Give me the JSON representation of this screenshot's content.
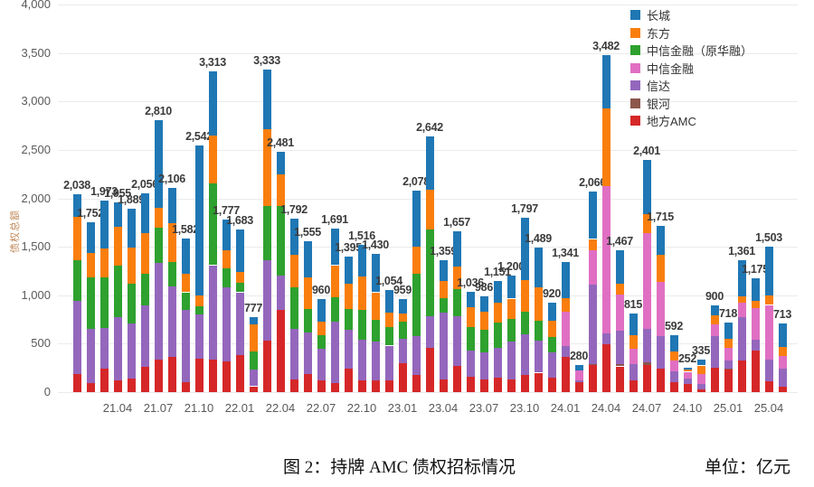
{
  "chart_data": {
    "type": "bar",
    "variant": "stacked",
    "title": "图 2：持牌 AMC 债权招标情况",
    "unit_label": "单位：亿元",
    "ylabel": "债权总额",
    "ylim": [
      0,
      4000
    ],
    "ytick_step": 500,
    "grid": true,
    "legend_position": "top-right",
    "legend_order": [
      "长城",
      "东方",
      "中信金融（原华融）",
      "中信金融",
      "信达",
      "银河",
      "地方AMC"
    ],
    "categories": [
      "21.01",
      "21.02",
      "21.03",
      "21.04",
      "21.05",
      "21.06",
      "21.07",
      "21.08",
      "21.09",
      "21.10",
      "21.11",
      "21.12",
      "22.01",
      "22.02",
      "22.03",
      "22.04",
      "22.05",
      "22.06",
      "22.07",
      "22.08",
      "22.09",
      "22.10",
      "22.11",
      "22.12",
      "23.01",
      "23.02",
      "23.03",
      "23.04",
      "23.05",
      "23.06",
      "23.07",
      "23.08",
      "23.09",
      "23.10",
      "23.11",
      "23.12",
      "24.01",
      "24.02",
      "24.03",
      "24.04",
      "24.05",
      "24.06",
      "24.07",
      "24.08",
      "24.09",
      "24.10",
      "24.11",
      "24.12",
      "25.01",
      "25.02",
      "25.03",
      "25.04",
      "25.05"
    ],
    "xtick_labels": [
      "21.04",
      "21.07",
      "21.10",
      "22.01",
      "22.04",
      "22.07",
      "22.10",
      "23.01",
      "23.04",
      "23.07",
      "23.10",
      "24.01",
      "24.04",
      "24.07",
      "24.10",
      "25.01",
      "25.04"
    ],
    "totals": [
      2038,
      1752,
      1973,
      1955,
      1889,
      2056,
      2810,
      2106,
      1582,
      2542,
      3313,
      1777,
      1683,
      777,
      3333,
      2481,
      1792,
      1555,
      960,
      1691,
      1395,
      1516,
      1430,
      1054,
      959,
      2078,
      2642,
      1359,
      1657,
      1036,
      986,
      1151,
      1200,
      1797,
      1489,
      920,
      1341,
      280,
      2066,
      3482,
      1467,
      815,
      2401,
      1715,
      592,
      252,
      335,
      900,
      718,
      1361,
      1175,
      1503,
      713
    ],
    "series": [
      {
        "key": "local-amc",
        "name": "地方AMC",
        "color": "#d62728",
        "values": [
          190,
          95,
          240,
          120,
          140,
          260,
          335,
          365,
          100,
          345,
          335,
          315,
          380,
          60,
          530,
          845,
          135,
          185,
          120,
          90,
          240,
          120,
          120,
          120,
          300,
          180,
          455,
          130,
          270,
          160,
          130,
          150,
          130,
          175,
          200,
          150,
          360,
          100,
          280,
          495,
          265,
          120,
          280,
          245,
          105,
          80,
          30,
          250,
          230,
          330,
          430,
          110,
          60
        ]
      },
      {
        "key": "yinhe",
        "name": "银河",
        "color": "#8c564b",
        "values": [
          0,
          0,
          0,
          0,
          0,
          0,
          0,
          0,
          0,
          0,
          0,
          0,
          0,
          0,
          0,
          0,
          0,
          0,
          0,
          0,
          0,
          0,
          0,
          0,
          0,
          0,
          0,
          0,
          0,
          0,
          0,
          0,
          0,
          0,
          0,
          0,
          0,
          0,
          10,
          0,
          20,
          0,
          30,
          0,
          0,
          0,
          0,
          0,
          15,
          0,
          0,
          0,
          0
        ]
      },
      {
        "key": "xinda",
        "name": "信达",
        "color": "#9467bd",
        "values": [
          755,
          560,
          425,
          655,
          570,
          635,
          1000,
          725,
          745,
          455,
          975,
          765,
          650,
          170,
          830,
          355,
          520,
          430,
          330,
          640,
          400,
          425,
          400,
          360,
          250,
          400,
          325,
          690,
          510,
          270,
          280,
          305,
          390,
          420,
          335,
          260,
          115,
          25,
          820,
          115,
          345,
          170,
          345,
          330,
          110,
          60,
          55,
          330,
          85,
          440,
          110,
          230,
          180
        ]
      },
      {
        "key": "citic",
        "name": "中信金融",
        "color": "#e06fc3",
        "values": [
          0,
          0,
          0,
          0,
          0,
          0,
          0,
          0,
          0,
          0,
          0,
          0,
          0,
          0,
          0,
          0,
          0,
          0,
          0,
          0,
          0,
          0,
          0,
          0,
          0,
          0,
          0,
          0,
          0,
          0,
          0,
          0,
          0,
          0,
          0,
          0,
          355,
          95,
          355,
          1520,
          375,
          160,
          990,
          560,
          110,
          70,
          100,
          120,
          130,
          150,
          330,
          560,
          130
        ]
      },
      {
        "key": "citic-huarong",
        "name": "中信金融（原华融）",
        "color": "#2ea12e",
        "values": [
          420,
          525,
          515,
          530,
          410,
          330,
          365,
          250,
          185,
          90,
          840,
          195,
          95,
          190,
          560,
          720,
          430,
          240,
          140,
          250,
          220,
          300,
          230,
          190,
          180,
          640,
          900,
          150,
          280,
          240,
          230,
          260,
          240,
          235,
          205,
          160,
          0,
          0,
          0,
          0,
          0,
          0,
          0,
          0,
          0,
          0,
          0,
          0,
          0,
          0,
          0,
          0,
          0
        ]
      },
      {
        "key": "dongfang",
        "name": "东方",
        "color": "#f97e0e",
        "values": [
          440,
          260,
          300,
          400,
          375,
          420,
          205,
          400,
          195,
          105,
          495,
          190,
          120,
          280,
          790,
          330,
          330,
          330,
          140,
          330,
          260,
          350,
          280,
          150,
          80,
          280,
          405,
          180,
          235,
          205,
          190,
          205,
          205,
          325,
          345,
          165,
          140,
          0,
          115,
          795,
          110,
          140,
          190,
          280,
          95,
          20,
          90,
          90,
          90,
          70,
          75,
          95,
          95
        ]
      },
      {
        "key": "changcheng",
        "name": "长城",
        "color": "#1f77b4",
        "values": [
          233,
          312,
          493,
          250,
          394,
          411,
          905,
          366,
          357,
          1547,
          668,
          312,
          438,
          77,
          623,
          231,
          377,
          370,
          230,
          381,
          275,
          321,
          400,
          234,
          149,
          578,
          557,
          209,
          362,
          161,
          156,
          231,
          235,
          642,
          404,
          185,
          371,
          60,
          486,
          557,
          352,
          225,
          566,
          300,
          172,
          22,
          60,
          110,
          168,
          371,
          230,
          508,
          248
        ]
      }
    ]
  }
}
